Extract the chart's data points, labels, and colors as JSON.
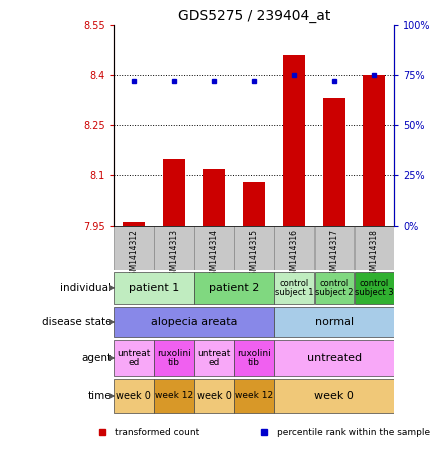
{
  "title": "GDS5275 / 239404_at",
  "samples": [
    "GSM1414312",
    "GSM1414313",
    "GSM1414314",
    "GSM1414315",
    "GSM1414316",
    "GSM1414317",
    "GSM1414318"
  ],
  "bar_values": [
    7.96,
    8.15,
    8.12,
    8.08,
    8.46,
    8.33,
    8.4
  ],
  "dot_values": [
    72,
    72,
    72,
    72,
    75,
    72,
    75
  ],
  "ylim_left": [
    7.95,
    8.55
  ],
  "ylim_right": [
    0,
    100
  ],
  "yticks_left": [
    7.95,
    8.1,
    8.25,
    8.4,
    8.55
  ],
  "yticks_right": [
    0,
    25,
    50,
    75,
    100
  ],
  "bar_color": "#cc0000",
  "dot_color": "#0000cc",
  "hline_values": [
    8.1,
    8.25,
    8.4
  ],
  "sample_box_color": "#c8c8c8",
  "individual_row": {
    "label": "individual",
    "groups": [
      {
        "text": "patient 1",
        "cols": [
          0,
          1
        ],
        "color": "#c0ecc0",
        "fontsize": 8
      },
      {
        "text": "patient 2",
        "cols": [
          2,
          3
        ],
        "color": "#80d880",
        "fontsize": 8
      },
      {
        "text": "control\nsubject 1",
        "cols": [
          4
        ],
        "color": "#c0ecc0",
        "fontsize": 6
      },
      {
        "text": "control\nsubject 2",
        "cols": [
          5
        ],
        "color": "#80d880",
        "fontsize": 6
      },
      {
        "text": "control\nsubject 3",
        "cols": [
          6
        ],
        "color": "#30b030",
        "fontsize": 6
      }
    ]
  },
  "disease_row": {
    "label": "disease state",
    "groups": [
      {
        "text": "alopecia areata",
        "cols": [
          0,
          1,
          2,
          3
        ],
        "color": "#8888e8",
        "fontsize": 8
      },
      {
        "text": "normal",
        "cols": [
          4,
          5,
          6
        ],
        "color": "#a8cce8",
        "fontsize": 8
      }
    ]
  },
  "agent_row": {
    "label": "agent",
    "groups": [
      {
        "text": "untreat\ned",
        "cols": [
          0
        ],
        "color": "#f8a8f8",
        "fontsize": 6.5
      },
      {
        "text": "ruxolini\ntib",
        "cols": [
          1
        ],
        "color": "#f060f0",
        "fontsize": 6.5
      },
      {
        "text": "untreat\ned",
        "cols": [
          2
        ],
        "color": "#f8a8f8",
        "fontsize": 6.5
      },
      {
        "text": "ruxolini\ntib",
        "cols": [
          3
        ],
        "color": "#f060f0",
        "fontsize": 6.5
      },
      {
        "text": "untreated",
        "cols": [
          4,
          5,
          6
        ],
        "color": "#f8a8f8",
        "fontsize": 8
      }
    ]
  },
  "time_row": {
    "label": "time",
    "groups": [
      {
        "text": "week 0",
        "cols": [
          0
        ],
        "color": "#f0c878",
        "fontsize": 7
      },
      {
        "text": "week 12",
        "cols": [
          1
        ],
        "color": "#d89828",
        "fontsize": 6.5
      },
      {
        "text": "week 0",
        "cols": [
          2
        ],
        "color": "#f0c878",
        "fontsize": 7
      },
      {
        "text": "week 12",
        "cols": [
          3
        ],
        "color": "#d89828",
        "fontsize": 6.5
      },
      {
        "text": "week 0",
        "cols": [
          4,
          5,
          6
        ],
        "color": "#f0c878",
        "fontsize": 8
      }
    ]
  },
  "legend": [
    {
      "color": "#cc0000",
      "label": "transformed count"
    },
    {
      "color": "#0000cc",
      "label": "percentile rank within the sample"
    }
  ]
}
